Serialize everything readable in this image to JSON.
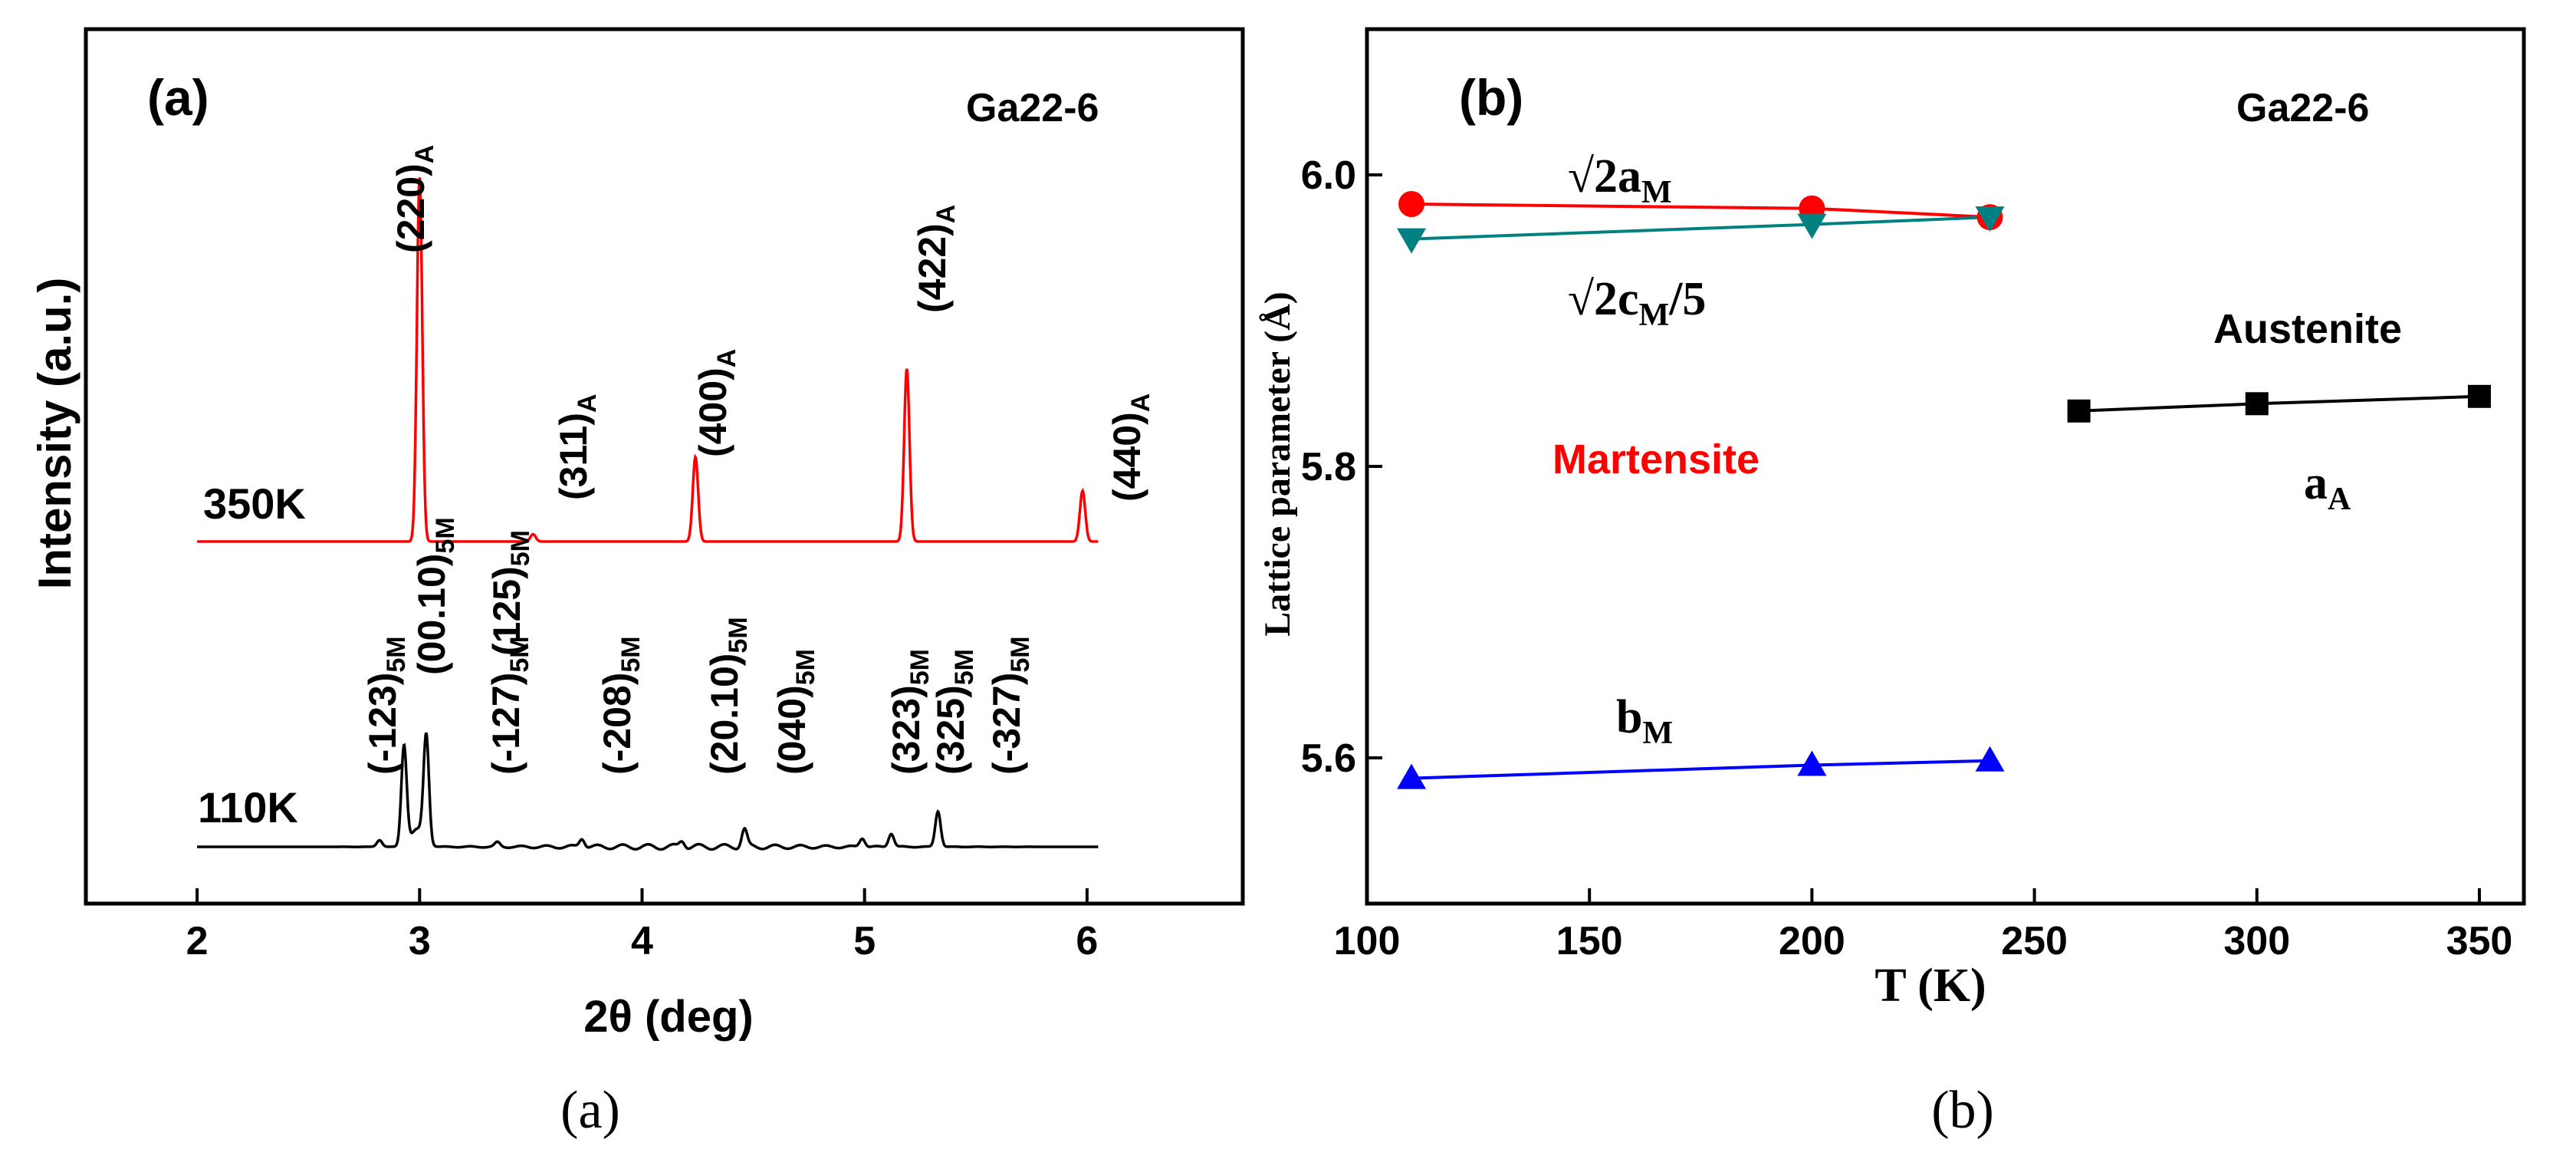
{
  "chart_data": [
    {
      "panel": "a",
      "type": "line",
      "panel_label": "(a)",
      "sample_label": "Ga22-6",
      "xlabel": "2θ (deg)",
      "ylabel": "Intensity (a.u.)",
      "xlim": [
        1.5,
        6.7
      ],
      "xticks": [
        2,
        3,
        4,
        5,
        6
      ],
      "y_ticks_shown": false,
      "grid": false,
      "series": [
        {
          "name": "350K",
          "color": "#ff0000",
          "peaks": [
            {
              "label": "(220)",
              "sub": "A",
              "x": 3.0,
              "intensity": 1.0
            },
            {
              "label": "(311)",
              "sub": "A",
              "x": 3.51,
              "intensity": 0.02
            },
            {
              "label": "(400)",
              "sub": "A",
              "x": 4.24,
              "intensity": 0.232
            },
            {
              "label": "(422)",
              "sub": "A",
              "x": 5.19,
              "intensity": 0.474
            },
            {
              "label": "(440)",
              "sub": "A",
              "x": 5.98,
              "intensity": 0.139
            }
          ]
        },
        {
          "name": "110K",
          "color": "#000000",
          "peaks": [
            {
              "label": "(-123)",
              "sub": "5M",
              "x": 2.82,
              "intensity": 0.03
            },
            {
              "label": "(00.10)",
              "sub": "5M",
              "x": 2.93,
              "intensity": 0.45
            },
            {
              "label": "(125)",
              "sub": "5M",
              "x": 3.03,
              "intensity": 0.48
            },
            {
              "label": "(-127)",
              "sub": "5M",
              "x": 3.35,
              "intensity": 0.02
            },
            {
              "label": "(-208)",
              "sub": "5M",
              "x": 3.73,
              "intensity": 0.04
            },
            {
              "label": "(20.10)",
              "sub": "5M",
              "x": 4.18,
              "intensity": 0.03
            },
            {
              "label": "(040)",
              "sub": "5M",
              "x": 4.46,
              "intensity": 0.08
            },
            {
              "label": "(323)",
              "sub": "5M",
              "x": 4.99,
              "intensity": 0.04
            },
            {
              "label": "(325)",
              "sub": "5M",
              "x": 5.12,
              "intensity": 0.06
            },
            {
              "label": "(-327)",
              "sub": "5M",
              "x": 5.33,
              "intensity": 0.16
            }
          ]
        }
      ]
    },
    {
      "panel": "b",
      "type": "scatter",
      "panel_label": "(b)",
      "sample_label": "Ga22-6",
      "xlabel": "T (K)",
      "ylabel": "Lattice parameter (Å)",
      "xlim": [
        100,
        360
      ],
      "ylim": [
        5.5,
        6.1
      ],
      "xticks": [
        100,
        150,
        200,
        250,
        300,
        350
      ],
      "yticks": [
        5.6,
        5.8,
        6.0
      ],
      "grid": false,
      "phase_labels": [
        {
          "text": "Martensite",
          "color": "#ff0000"
        },
        {
          "text": "Austenite",
          "color": "#000000"
        }
      ],
      "series": [
        {
          "name": "√2a",
          "sub": "M",
          "marker": "circle",
          "color": "#ff0000",
          "x": [
            110,
            200,
            240
          ],
          "y": [
            5.98,
            5.977,
            5.971
          ]
        },
        {
          "name": "√2c",
          "sub": "M",
          "suffix": "/5",
          "marker": "triangle-down",
          "color": "#008080",
          "x": [
            110,
            200,
            240
          ],
          "y": [
            5.956,
            5.966,
            5.971
          ]
        },
        {
          "name": "b",
          "sub": "M",
          "marker": "triangle-up",
          "color": "#0000ff",
          "x": [
            110,
            200,
            240
          ],
          "y": [
            5.586,
            5.595,
            5.598
          ]
        },
        {
          "name": "a",
          "sub": "A",
          "marker": "square",
          "color": "#000000",
          "x": [
            260,
            300,
            350
          ],
          "y": [
            5.838,
            5.843,
            5.848
          ]
        }
      ]
    }
  ],
  "captions": [
    "(a)",
    "(b)"
  ]
}
